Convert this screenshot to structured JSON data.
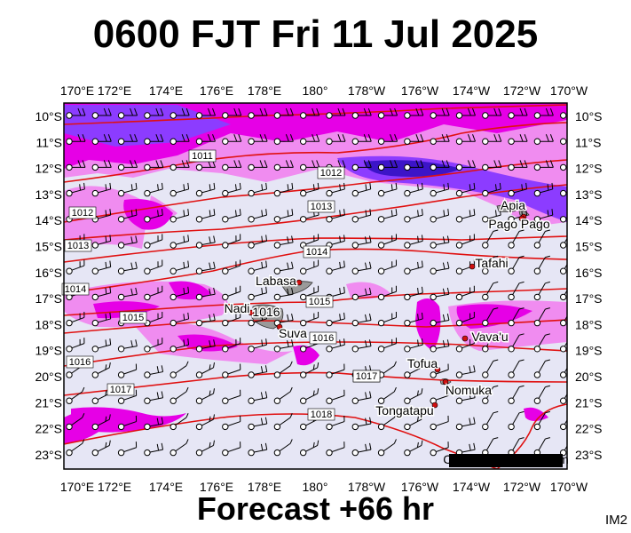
{
  "title": "0600 FJT Fri 11 Jul 2025",
  "footer": "Forecast +66 hr",
  "code": "IM2",
  "copyright": "Copyright metvuw.com",
  "colors": {
    "background": "#e6e6f5",
    "precip_light": "#f08cf0",
    "precip_mid": "#e600e6",
    "precip_heavy": "#8c3cff",
    "precip_extreme": "#3c14c8",
    "isobar": "#e01010",
    "land": "#9a9a9a",
    "barb": "#000000"
  },
  "lon_labels": [
    "170°E",
    "172°E",
    "174°E",
    "176°E",
    "178°E",
    "180°",
    "178°W",
    "176°W",
    "174°W",
    "172°W",
    "170°W"
  ],
  "lat_labels": [
    "10°S",
    "11°S",
    "12°S",
    "13°S",
    "14°S",
    "15°S",
    "16°S",
    "17°S",
    "18°S",
    "19°S",
    "20°S",
    "21°S",
    "22°S",
    "23°S"
  ],
  "isobar_labels": [
    "1011",
    "1012",
    "1013",
    "1012",
    "1013",
    "1014",
    "1014",
    "1015",
    "1015",
    "1016",
    "1016",
    "1016",
    "1017",
    "1017",
    "1018"
  ],
  "places": [
    "Apia",
    "Pago Pago",
    "Tafahi",
    "Labasa",
    "Nadi",
    "Suva",
    "Vava'u",
    "Tofua",
    "Nomuka",
    "Tongatapu",
    "1016"
  ]
}
